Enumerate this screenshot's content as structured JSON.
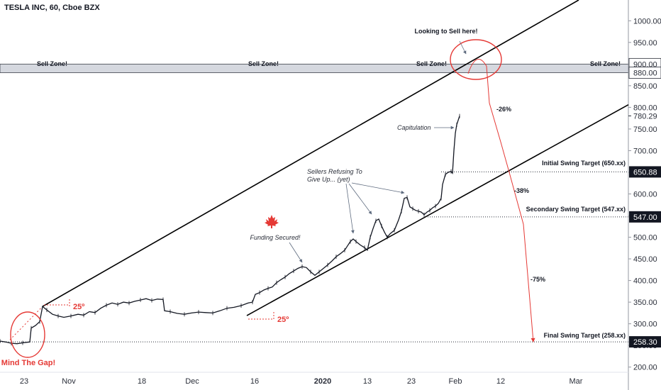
{
  "chart_data": {
    "type": "line",
    "title": "TESLA INC, 60, Cboe BZX",
    "y_ticks": [
      200,
      250,
      300,
      350,
      400,
      450,
      500,
      550,
      600,
      650,
      700,
      750,
      800,
      850,
      900,
      950,
      1000
    ],
    "y_tick_labels": [
      "200.00",
      "250.00",
      "300.00",
      "350.00",
      "400.00",
      "450.00",
      "500.00",
      "550.00",
      "600.00",
      "650.00",
      "700.00",
      "750.00",
      "800.00",
      "850.00",
      "900.00",
      "950.00",
      "1000.00"
    ],
    "ylim": [
      188,
      1048
    ],
    "x_tick_labels": [
      "23",
      "Nov",
      "18",
      "Dec",
      "16",
      "2020",
      "13",
      "23",
      "Feb",
      "12",
      "Mar"
    ],
    "price_tags": [
      {
        "label": "780.29",
        "value": 780.29,
        "style": "plain"
      },
      {
        "label": "650.88",
        "value": 650.88,
        "style": "dark"
      },
      {
        "label": "547.00",
        "value": 547.0,
        "style": "dark"
      },
      {
        "label": "258.30",
        "value": 258.3,
        "style": "dark"
      },
      {
        "label": "900.00",
        "value": 900.0,
        "style": "box"
      },
      {
        "label": "880.00",
        "value": 880.0,
        "style": "box"
      }
    ],
    "price_series": [
      [
        0,
        260
      ],
      [
        8,
        258
      ],
      [
        16,
        255
      ],
      [
        24,
        254
      ],
      [
        32,
        256
      ],
      [
        42,
        258
      ],
      [
        44,
        290
      ],
      [
        50,
        296
      ],
      [
        56,
        305
      ],
      [
        60,
        340
      ],
      [
        66,
        332
      ],
      [
        74,
        322
      ],
      [
        82,
        318
      ],
      [
        90,
        315
      ],
      [
        100,
        318
      ],
      [
        110,
        322
      ],
      [
        118,
        320
      ],
      [
        126,
        328
      ],
      [
        134,
        326
      ],
      [
        142,
        336
      ],
      [
        150,
        343
      ],
      [
        158,
        348
      ],
      [
        166,
        345
      ],
      [
        174,
        350
      ],
      [
        182,
        348
      ],
      [
        190,
        352
      ],
      [
        198,
        355
      ],
      [
        206,
        358
      ],
      [
        214,
        354
      ],
      [
        222,
        357
      ],
      [
        230,
        356
      ],
      [
        232,
        330
      ],
      [
        240,
        328
      ],
      [
        250,
        324
      ],
      [
        260,
        322
      ],
      [
        270,
        325
      ],
      [
        280,
        327
      ],
      [
        290,
        326
      ],
      [
        300,
        325
      ],
      [
        310,
        330
      ],
      [
        320,
        336
      ],
      [
        330,
        338
      ],
      [
        340,
        342
      ],
      [
        350,
        348
      ],
      [
        356,
        350
      ],
      [
        360,
        368
      ],
      [
        366,
        372
      ],
      [
        372,
        378
      ],
      [
        378,
        382
      ],
      [
        384,
        385
      ],
      [
        390,
        395
      ],
      [
        396,
        402
      ],
      [
        402,
        408
      ],
      [
        408,
        416
      ],
      [
        414,
        422
      ],
      [
        420,
        428
      ],
      [
        426,
        432
      ],
      [
        432,
        430
      ],
      [
        438,
        420
      ],
      [
        444,
        412
      ],
      [
        450,
        420
      ],
      [
        456,
        428
      ],
      [
        462,
        436
      ],
      [
        468,
        445
      ],
      [
        474,
        455
      ],
      [
        480,
        462
      ],
      [
        486,
        470
      ],
      [
        490,
        480
      ],
      [
        494,
        490
      ],
      [
        498,
        496
      ],
      [
        502,
        490
      ],
      [
        508,
        482
      ],
      [
        514,
        476
      ],
      [
        518,
        470
      ],
      [
        522,
        500
      ],
      [
        526,
        520
      ],
      [
        530,
        538
      ],
      [
        534,
        542
      ],
      [
        538,
        526
      ],
      [
        542,
        512
      ],
      [
        546,
        500
      ],
      [
        550,
        508
      ],
      [
        556,
        516
      ],
      [
        562,
        540
      ],
      [
        566,
        560
      ],
      [
        570,
        590
      ],
      [
        574,
        592
      ],
      [
        578,
        570
      ],
      [
        582,
        566
      ],
      [
        586,
        562
      ],
      [
        590,
        560
      ],
      [
        594,
        558
      ],
      [
        598,
        552
      ],
      [
        602,
        558
      ],
      [
        606,
        562
      ],
      [
        610,
        568
      ],
      [
        614,
        572
      ],
      [
        618,
        578
      ],
      [
        622,
        590
      ],
      [
        624,
        622
      ],
      [
        628,
        645
      ],
      [
        632,
        650
      ],
      [
        636,
        652
      ],
      [
        638,
        648
      ],
      [
        640,
        700
      ],
      [
        642,
        740
      ],
      [
        644,
        760
      ],
      [
        646,
        770
      ],
      [
        648,
        780
      ]
    ],
    "channel_upper": [
      [
        60,
        340
      ],
      [
        816,
        1048
      ]
    ],
    "channel_upper_mid": [
      [
        14,
        263
      ],
      [
        60,
        340
      ]
    ],
    "channel_lower": [
      [
        348,
        319
      ],
      [
        886,
        806
      ]
    ],
    "sell_zone": {
      "low": 880,
      "high": 900
    },
    "dotted_levels": [
      {
        "y": 650.88,
        "x_start": 622
      },
      {
        "y": 547.0,
        "x_start": 600
      },
      {
        "y": 258.3,
        "x_start": 0
      }
    ],
    "projection": [
      [
        660,
        878
      ],
      [
        672,
        905
      ],
      [
        690,
        810
      ],
      [
        706,
        720
      ],
      [
        718,
        650
      ],
      [
        728,
        590
      ],
      [
        738,
        530
      ],
      [
        752,
        258
      ]
    ],
    "annotations": {
      "sell_zone_labels": [
        "Sell Zone!",
        "Sell Zone!",
        "Sell Zone!",
        "Sell Zone!"
      ],
      "looking_to_sell": "Looking to Sell here!",
      "capitulation": "Capitulation",
      "sellers_refusing_line1": "Sellers Refusing To",
      "sellers_refusing_line2": "Give Up... (yet)",
      "funding_secured": "Funding Secured!",
      "mind_the_gap": "Mind The Gap!",
      "angle_upper": "25º",
      "angle_lower": "25º",
      "pct_26": "-26%",
      "pct_38": "-38%",
      "pct_75": "-75%",
      "initial_target": "Initial Swing Target (650.xx)",
      "secondary_target": "Secondary Swing Target (547.xx)",
      "final_target": "Final Swing Target (258.xx)"
    },
    "colors": {
      "price": "#131722",
      "accent": "#e53935",
      "channel": "#000000",
      "tag_dark": "#131722",
      "zone_fill": "#d1d4dc",
      "zone_border": "#2a2e39"
    }
  }
}
